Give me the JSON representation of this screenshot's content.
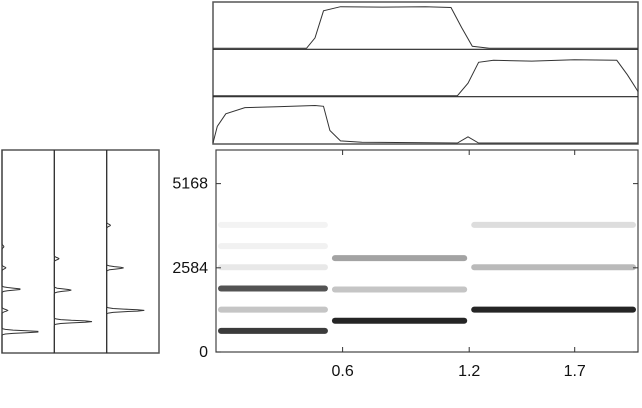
{
  "chart_data": [
    {
      "type": "line",
      "panel": "activations",
      "x_range": [
        0,
        2.0
      ],
      "series": [
        {
          "points": [
            [
              0.0,
              0
            ],
            [
              0.44,
              0
            ],
            [
              0.48,
              0.25
            ],
            [
              0.52,
              0.9
            ],
            [
              0.6,
              1.0
            ],
            [
              0.8,
              0.99
            ],
            [
              1.0,
              1.0
            ],
            [
              1.12,
              0.98
            ],
            [
              1.17,
              0.5
            ],
            [
              1.22,
              0.05
            ],
            [
              1.3,
              0
            ],
            [
              2.0,
              0
            ]
          ]
        },
        {
          "points": [
            [
              0.0,
              0
            ],
            [
              1.15,
              0
            ],
            [
              1.2,
              0.3
            ],
            [
              1.25,
              0.8
            ],
            [
              1.32,
              0.85
            ],
            [
              1.5,
              0.83
            ],
            [
              1.7,
              0.86
            ],
            [
              1.9,
              0.85
            ],
            [
              1.95,
              0.5
            ],
            [
              2.0,
              0.1
            ]
          ]
        },
        {
          "points": [
            [
              0.0,
              0
            ],
            [
              0.02,
              0.4
            ],
            [
              0.06,
              0.7
            ],
            [
              0.15,
              0.85
            ],
            [
              0.3,
              0.87
            ],
            [
              0.48,
              0.9
            ],
            [
              0.52,
              0.88
            ],
            [
              0.55,
              0.3
            ],
            [
              0.6,
              0.05
            ],
            [
              0.7,
              0.02
            ],
            [
              1.15,
              0
            ],
            [
              1.2,
              0.15
            ],
            [
              1.25,
              0
            ],
            [
              2.0,
              0
            ]
          ]
        }
      ]
    },
    {
      "type": "heatmap",
      "panel": "spectrogram",
      "x_range": [
        0,
        2.0
      ],
      "ylim": [
        0,
        6200
      ],
      "xticks": [
        {
          "value": 0.6,
          "label": "0.6"
        },
        {
          "value": 1.2,
          "label": "1.2"
        },
        {
          "value": 1.7,
          "label": "1.7"
        }
      ],
      "yticks": [
        {
          "value": 0,
          "label": "0"
        },
        {
          "value": 2584,
          "label": "2584"
        },
        {
          "value": 5168,
          "label": "5168"
        }
      ],
      "bands": [
        {
          "x0": 0.0,
          "x1": 0.54,
          "y": 650,
          "intensity": 0.85
        },
        {
          "x0": 0.0,
          "x1": 0.54,
          "y": 1300,
          "intensity": 0.25
        },
        {
          "x0": 0.0,
          "x1": 0.54,
          "y": 1950,
          "intensity": 0.75
        },
        {
          "x0": 0.0,
          "x1": 0.54,
          "y": 2600,
          "intensity": 0.1
        },
        {
          "x0": 0.0,
          "x1": 0.54,
          "y": 3250,
          "intensity": 0.06
        },
        {
          "x0": 0.0,
          "x1": 0.54,
          "y": 3900,
          "intensity": 0.05
        },
        {
          "x0": 0.54,
          "x1": 1.2,
          "y": 960,
          "intensity": 0.95
        },
        {
          "x0": 0.54,
          "x1": 1.2,
          "y": 1920,
          "intensity": 0.25
        },
        {
          "x0": 0.54,
          "x1": 1.2,
          "y": 2880,
          "intensity": 0.4
        },
        {
          "x0": 1.2,
          "x1": 2.0,
          "y": 1300,
          "intensity": 0.95
        },
        {
          "x0": 1.2,
          "x1": 2.0,
          "y": 2600,
          "intensity": 0.3
        },
        {
          "x0": 1.2,
          "x1": 2.0,
          "y": 3900,
          "intensity": 0.15
        }
      ]
    },
    {
      "type": "line",
      "panel": "spectral-templates",
      "ylim": [
        0,
        6200
      ],
      "series": [
        {
          "peaks": [
            [
              650,
              1.0
            ],
            [
              1300,
              0.15
            ],
            [
              1950,
              0.5
            ],
            [
              2600,
              0.1
            ],
            [
              3250,
              0.05
            ]
          ]
        },
        {
          "peaks": [
            [
              960,
              1.0
            ],
            [
              1920,
              0.45
            ],
            [
              2880,
              0.12
            ]
          ]
        },
        {
          "peaks": [
            [
              1300,
              1.0
            ],
            [
              2600,
              0.45
            ],
            [
              3900,
              0.1
            ]
          ]
        }
      ]
    }
  ]
}
